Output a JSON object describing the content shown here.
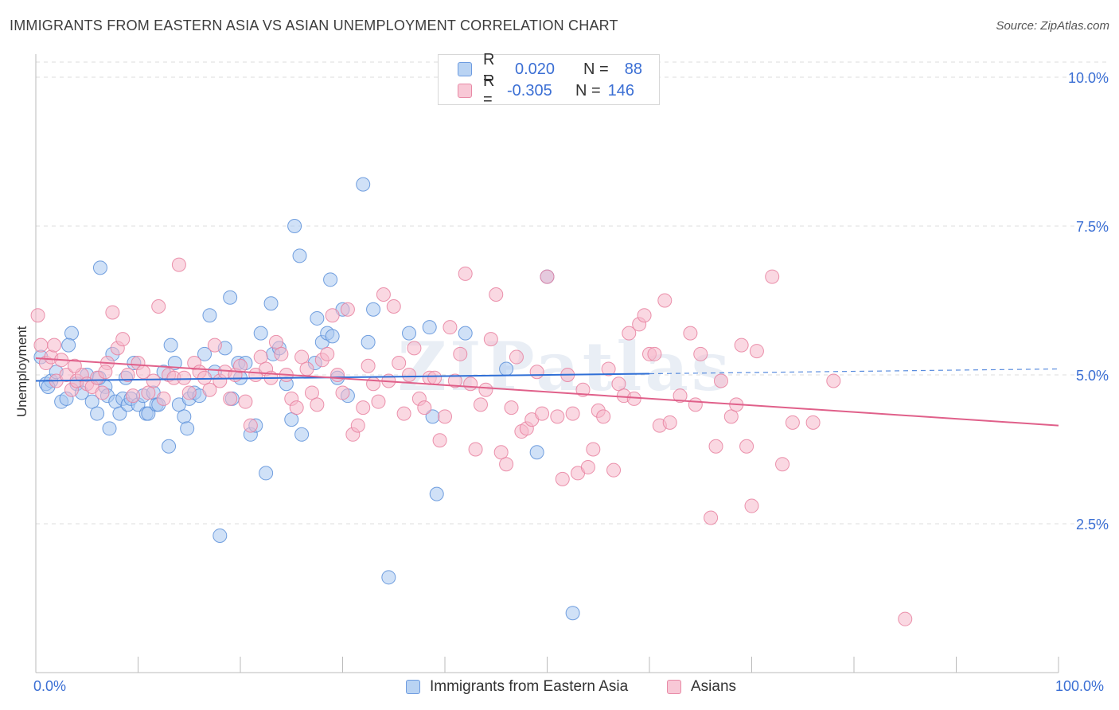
{
  "title": "IMMIGRANTS FROM EASTERN ASIA VS ASIAN UNEMPLOYMENT CORRELATION CHART",
  "source": "Source: ZipAtlas.com",
  "legend": {
    "rows": [
      {
        "r_label": "R =",
        "r_value": "0.020",
        "n_label": "N =",
        "n_value": "88"
      },
      {
        "r_label": "R =",
        "r_value": "-0.305",
        "n_label": "N =",
        "n_value": "146"
      }
    ]
  },
  "bottom_legend": {
    "series1": "Immigrants from Eastern Asia",
    "series2": "Asians"
  },
  "colors": {
    "blue_fill": "#a9c8f0",
    "blue_stroke": "#5b8fd9",
    "blue_line": "#2f6fd6",
    "pink_fill": "#f5b8cb",
    "pink_stroke": "#e8809f",
    "pink_line": "#e0608a",
    "axis_text": "#3b6fd4",
    "grid": "#dddddd"
  },
  "chart_data": {
    "type": "scatter",
    "title": "IMMIGRANTS FROM EASTERN ASIA VS ASIAN UNEMPLOYMENT CORRELATION CHART",
    "xlabel": "",
    "ylabel": "Unemployment",
    "xlim": [
      0,
      100
    ],
    "ylim": [
      0,
      10.5
    ],
    "x_tick_labels": [
      "0.0%",
      "100.0%"
    ],
    "y_ticks": [
      2.5,
      5.0,
      7.5,
      10.0
    ],
    "y_tick_labels": [
      "2.5%",
      "5.0%",
      "7.5%",
      "10.0%"
    ],
    "grid": true,
    "watermark": "ZIPatlas",
    "series": [
      {
        "name": "Immigrants from Eastern Asia",
        "color": "#a9c8f0",
        "trend": {
          "x": [
            0,
            60
          ],
          "y": [
            4.9,
            5.02
          ],
          "dashed_extension": {
            "x": [
              60,
              100
            ],
            "y": [
              5.02,
              5.1
            ]
          }
        },
        "points": [
          [
            0.5,
            5.3
          ],
          [
            1,
            4.85
          ],
          [
            1.5,
            4.9
          ],
          [
            2,
            5.05
          ],
          [
            2.5,
            4.55
          ],
          [
            3,
            4.6
          ],
          [
            3.5,
            5.7
          ],
          [
            4,
            4.85
          ],
          [
            4.5,
            4.7
          ],
          [
            5,
            5.0
          ],
          [
            5.5,
            4.55
          ],
          [
            6,
            4.35
          ],
          [
            6.3,
            6.8
          ],
          [
            6.8,
            4.8
          ],
          [
            7,
            4.65
          ],
          [
            7.2,
            4.1
          ],
          [
            7.5,
            5.35
          ],
          [
            7.8,
            4.55
          ],
          [
            8.2,
            4.35
          ],
          [
            8.5,
            4.6
          ],
          [
            9,
            4.5
          ],
          [
            9.3,
            4.6
          ],
          [
            9.6,
            5.2
          ],
          [
            10,
            4.5
          ],
          [
            10.5,
            4.65
          ],
          [
            10.8,
            4.35
          ],
          [
            11,
            4.35
          ],
          [
            11.5,
            4.7
          ],
          [
            11.8,
            4.5
          ],
          [
            12,
            4.5
          ],
          [
            13,
            3.8
          ],
          [
            13.2,
            5.5
          ],
          [
            13.6,
            5.2
          ],
          [
            14,
            4.5
          ],
          [
            14.5,
            4.3
          ],
          [
            14.8,
            4.1
          ],
          [
            15,
            4.6
          ],
          [
            15.5,
            4.7
          ],
          [
            16,
            4.65
          ],
          [
            16.5,
            5.35
          ],
          [
            17,
            6.0
          ],
          [
            17.5,
            5.05
          ],
          [
            18,
            2.3
          ],
          [
            18.5,
            5.45
          ],
          [
            19,
            6.3
          ],
          [
            19.2,
            4.6
          ],
          [
            19.8,
            5.2
          ],
          [
            20,
            4.95
          ],
          [
            20.5,
            5.2
          ],
          [
            21,
            4.0
          ],
          [
            21.5,
            4.15
          ],
          [
            22,
            5.7
          ],
          [
            22.5,
            3.35
          ],
          [
            23,
            6.2
          ],
          [
            23.2,
            5.35
          ],
          [
            23.8,
            5.45
          ],
          [
            24.5,
            4.85
          ],
          [
            25,
            4.25
          ],
          [
            25.3,
            7.5
          ],
          [
            25.8,
            7.0
          ],
          [
            26,
            4.0
          ],
          [
            27.3,
            5.2
          ],
          [
            27.5,
            5.95
          ],
          [
            28,
            5.55
          ],
          [
            28.5,
            5.7
          ],
          [
            28.8,
            6.6
          ],
          [
            29,
            5.65
          ],
          [
            29.5,
            4.95
          ],
          [
            30,
            6.1
          ],
          [
            30.5,
            4.65
          ],
          [
            32,
            8.2
          ],
          [
            32.5,
            5.55
          ],
          [
            33,
            6.1
          ],
          [
            34.5,
            1.6
          ],
          [
            36.5,
            5.7
          ],
          [
            38.5,
            5.8
          ],
          [
            38.8,
            4.3
          ],
          [
            39.2,
            3.0
          ],
          [
            42,
            5.7
          ],
          [
            46,
            5.1
          ],
          [
            49,
            3.7
          ],
          [
            50,
            6.65
          ],
          [
            52.5,
            1.0
          ],
          [
            1.2,
            4.8
          ],
          [
            3.2,
            5.5
          ],
          [
            6.2,
            4.95
          ],
          [
            8.8,
            4.95
          ],
          [
            12.5,
            5.05
          ]
        ]
      },
      {
        "name": "Asians",
        "color": "#f5b8cb",
        "trend": {
          "x": [
            0,
            100
          ],
          "y": [
            5.28,
            4.15
          ]
        },
        "points": [
          [
            0.2,
            6.0
          ],
          [
            0.5,
            5.5
          ],
          [
            1,
            5.2
          ],
          [
            1.5,
            5.3
          ],
          [
            2,
            4.9
          ],
          [
            2.5,
            5.25
          ],
          [
            3,
            5.0
          ],
          [
            3.5,
            4.75
          ],
          [
            4,
            4.9
          ],
          [
            4.5,
            5.0
          ],
          [
            5,
            4.85
          ],
          [
            5.5,
            4.8
          ],
          [
            6,
            4.95
          ],
          [
            6.5,
            4.7
          ],
          [
            7,
            5.2
          ],
          [
            7.5,
            6.05
          ],
          [
            8,
            5.45
          ],
          [
            8.5,
            5.6
          ],
          [
            9,
            5.0
          ],
          [
            9.5,
            4.65
          ],
          [
            10,
            5.2
          ],
          [
            10.5,
            5.05
          ],
          [
            11,
            4.7
          ],
          [
            11.5,
            4.9
          ],
          [
            12,
            6.15
          ],
          [
            12.5,
            4.6
          ],
          [
            13,
            5.0
          ],
          [
            13.5,
            4.95
          ],
          [
            14,
            6.85
          ],
          [
            14.5,
            4.95
          ],
          [
            15,
            4.7
          ],
          [
            15.5,
            5.2
          ],
          [
            16,
            5.05
          ],
          [
            16.5,
            4.95
          ],
          [
            17,
            4.75
          ],
          [
            17.5,
            5.5
          ],
          [
            18,
            4.9
          ],
          [
            18.5,
            5.05
          ],
          [
            19,
            4.6
          ],
          [
            19.5,
            5.0
          ],
          [
            20,
            5.15
          ],
          [
            20.5,
            4.55
          ],
          [
            21,
            4.15
          ],
          [
            21.5,
            5.0
          ],
          [
            22,
            5.3
          ],
          [
            22.5,
            5.1
          ],
          [
            23,
            4.95
          ],
          [
            23.5,
            5.55
          ],
          [
            24,
            5.35
          ],
          [
            24.5,
            5.0
          ],
          [
            25,
            4.6
          ],
          [
            25.5,
            4.45
          ],
          [
            26,
            5.3
          ],
          [
            26.5,
            5.1
          ],
          [
            27,
            4.7
          ],
          [
            27.5,
            4.5
          ],
          [
            28,
            5.25
          ],
          [
            28.5,
            5.35
          ],
          [
            29,
            6.0
          ],
          [
            29.5,
            5.0
          ],
          [
            30,
            4.7
          ],
          [
            30.5,
            6.1
          ],
          [
            31,
            4.0
          ],
          [
            31.5,
            4.15
          ],
          [
            32,
            4.45
          ],
          [
            32.5,
            5.15
          ],
          [
            33,
            4.85
          ],
          [
            33.5,
            4.55
          ],
          [
            34,
            6.35
          ],
          [
            34.5,
            4.9
          ],
          [
            35,
            6.15
          ],
          [
            35.5,
            5.2
          ],
          [
            36,
            4.35
          ],
          [
            36.5,
            5.0
          ],
          [
            37,
            5.45
          ],
          [
            37.5,
            4.6
          ],
          [
            38,
            4.45
          ],
          [
            38.5,
            4.95
          ],
          [
            39,
            4.95
          ],
          [
            39.5,
            3.9
          ],
          [
            40,
            4.3
          ],
          [
            40.5,
            5.8
          ],
          [
            41,
            4.9
          ],
          [
            41.5,
            5.35
          ],
          [
            42,
            6.7
          ],
          [
            42.5,
            4.85
          ],
          [
            43,
            3.75
          ],
          [
            43.5,
            4.5
          ],
          [
            44,
            4.75
          ],
          [
            44.5,
            5.6
          ],
          [
            45,
            6.35
          ],
          [
            45.5,
            3.7
          ],
          [
            46,
            3.5
          ],
          [
            46.5,
            4.45
          ],
          [
            47,
            5.3
          ],
          [
            47.5,
            4.05
          ],
          [
            48,
            4.1
          ],
          [
            48.5,
            4.25
          ],
          [
            49,
            5.05
          ],
          [
            49.5,
            4.35
          ],
          [
            50,
            6.65
          ],
          [
            51,
            4.3
          ],
          [
            51.5,
            3.25
          ],
          [
            52,
            5.0
          ],
          [
            52.5,
            4.35
          ],
          [
            53,
            3.35
          ],
          [
            53.5,
            4.75
          ],
          [
            54,
            3.45
          ],
          [
            54.5,
            3.75
          ],
          [
            55,
            4.4
          ],
          [
            55.5,
            4.3
          ],
          [
            56,
            5.1
          ],
          [
            56.5,
            3.4
          ],
          [
            57,
            4.85
          ],
          [
            57.5,
            4.65
          ],
          [
            58,
            5.7
          ],
          [
            58.5,
            4.6
          ],
          [
            59,
            5.85
          ],
          [
            59.5,
            6.0
          ],
          [
            60,
            5.35
          ],
          [
            60.5,
            5.35
          ],
          [
            61,
            4.15
          ],
          [
            61.5,
            6.25
          ],
          [
            62,
            4.2
          ],
          [
            63,
            4.65
          ],
          [
            64,
            5.7
          ],
          [
            64.5,
            4.5
          ],
          [
            65,
            5.35
          ],
          [
            66,
            2.6
          ],
          [
            66.5,
            3.8
          ],
          [
            67,
            4.9
          ],
          [
            68,
            4.3
          ],
          [
            68.5,
            4.5
          ],
          [
            69,
            5.5
          ],
          [
            69.5,
            3.8
          ],
          [
            70,
            2.8
          ],
          [
            70.5,
            5.4
          ],
          [
            72,
            6.65
          ],
          [
            73,
            3.5
          ],
          [
            74,
            4.2
          ],
          [
            76,
            4.2
          ],
          [
            78,
            4.9
          ],
          [
            85,
            0.9
          ],
          [
            1.8,
            5.5
          ],
          [
            3.8,
            5.15
          ],
          [
            6.8,
            5.05
          ]
        ]
      }
    ]
  },
  "axis": {
    "x_left": "0.0%",
    "x_right": "100.0%",
    "y_label": "Unemployment"
  }
}
